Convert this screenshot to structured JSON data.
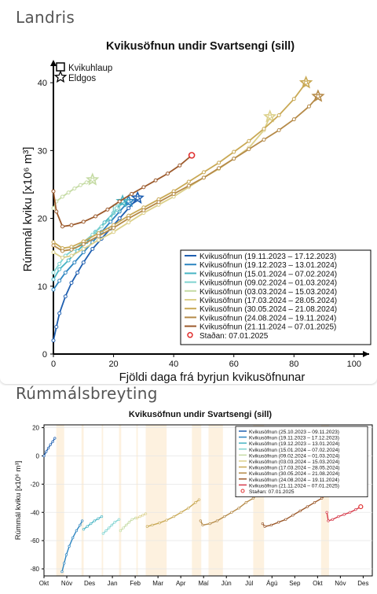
{
  "sections": {
    "top": "Landris",
    "bottom": "Rúmmálsbreyting"
  },
  "legend_symbols": {
    "square": "Kvikuhlaup",
    "star": "Eldgos"
  },
  "colors": {
    "s1": "#1f5fb0",
    "s2": "#2e86c1",
    "s3": "#48b5c4",
    "s4": "#7fd3d0",
    "s5": "#c5dba4",
    "s6": "#dcd08a",
    "s7": "#c9a955",
    "s8": "#b58a48",
    "s9": "#9c5a2c",
    "s10": "#d63a4a",
    "now": "#e03030"
  },
  "chart_data": [
    {
      "type": "line",
      "title": "Kvikusöfnun undir Svartsengi (sill)",
      "xlabel": "Fjöldi daga frá byrjun kvikusöfnunar",
      "ylabel": "Rúmmál kviku [x10⁶ m³]",
      "xlim": [
        0,
        105
      ],
      "ylim": [
        0,
        45
      ],
      "xticks": [
        0,
        20,
        40,
        60,
        80,
        100
      ],
      "yticks": [
        0,
        10,
        20,
        30,
        40
      ],
      "legend_position": "bottom-right",
      "series": [
        {
          "name": "Kvikusöfnun (19.11.2023 – 17.12.2023)",
          "x": [
            0,
            1,
            2,
            4,
            6,
            8,
            10,
            13,
            16,
            19,
            22,
            25,
            28
          ],
          "y": [
            2,
            4,
            6,
            8.5,
            10.5,
            12,
            13.5,
            15.5,
            17,
            18.5,
            20,
            21.5,
            23
          ],
          "end": "star"
        },
        {
          "name": "Kvikusöfnun (19.12.2023 – 13.01.2024)",
          "x": [
            0,
            2,
            4,
            7,
            10,
            13,
            16,
            19,
            22,
            25
          ],
          "y": [
            9.5,
            10.8,
            12,
            13.5,
            15,
            16.5,
            18,
            19.5,
            21,
            22.5
          ],
          "end": "star"
        },
        {
          "name": "Kvikusöfnun (15.01.2024 – 07.02.2024)",
          "x": [
            0,
            2,
            5,
            8,
            11,
            14,
            17,
            20,
            23
          ],
          "y": [
            11,
            12.5,
            13.8,
            15.2,
            16.5,
            18,
            19.4,
            20.8,
            22.5
          ],
          "end": "star"
        },
        {
          "name": "Kvikusöfnun (09.02.2024 – 01.03.2024)",
          "x": [
            0,
            2,
            4,
            7,
            10,
            13,
            16,
            19,
            21
          ],
          "y": [
            12,
            13.3,
            14.5,
            15.5,
            16.5,
            17.6,
            18.8,
            20,
            21.5
          ],
          "end": "square"
        },
        {
          "name": "Kvikusöfnun (03.03.2024 – 15.03.2024)",
          "x": [
            0,
            1,
            3,
            5,
            7,
            9,
            11,
            13
          ],
          "y": [
            21.5,
            22.5,
            23.2,
            23.8,
            24.4,
            24.9,
            25.3,
            25.7
          ],
          "end": "star"
        },
        {
          "name": "Kvikusöfnun (17.03.2024 – 28.05.2024)",
          "x": [
            0,
            3,
            6,
            10,
            15,
            20,
            25,
            30,
            35,
            40,
            45,
            50,
            55,
            60,
            65,
            70,
            72
          ],
          "y": [
            15,
            14.2,
            14.5,
            15.5,
            16.8,
            18,
            19.4,
            20.8,
            22,
            23.2,
            24.6,
            26,
            27.3,
            28.8,
            30.4,
            33,
            35
          ],
          "end": "star"
        },
        {
          "name": "Kvikusöfnun (30.05.2024 – 21.08.2024)",
          "x": [
            0,
            3,
            6,
            10,
            15,
            20,
            25,
            30,
            35,
            40,
            45,
            50,
            55,
            60,
            65,
            70,
            75,
            80,
            84
          ],
          "y": [
            16.5,
            15.6,
            15.8,
            16.6,
            17.8,
            19,
            20.4,
            21.6,
            22.8,
            24,
            25.4,
            26.8,
            28.2,
            29.8,
            31.4,
            33.2,
            35.2,
            37.6,
            40
          ],
          "end": "star"
        },
        {
          "name": "Kvikusöfnun (24.08.2024 – 19.11.2024)",
          "x": [
            0,
            3,
            6,
            10,
            15,
            20,
            25,
            30,
            35,
            40,
            45,
            50,
            55,
            60,
            65,
            70,
            75,
            80,
            85,
            88
          ],
          "y": [
            16,
            15.2,
            15.4,
            16.2,
            17.4,
            18.6,
            20,
            21.2,
            22.4,
            23.6,
            24.8,
            26,
            27.4,
            28.8,
            30.2,
            31.6,
            33,
            34.6,
            36.5,
            38
          ],
          "end": "star"
        },
        {
          "name": "Kvikusöfnun (21.11.2024 – 07.01.2025)",
          "x": [
            0,
            1,
            3,
            6,
            10,
            14,
            18,
            22,
            26,
            30,
            34,
            38,
            42,
            46
          ],
          "y": [
            24,
            21,
            18.8,
            19,
            19.5,
            20.3,
            21.3,
            22.5,
            23.6,
            24.6,
            25.6,
            26.6,
            27.8,
            29.3
          ],
          "end": "none"
        }
      ],
      "current_point": {
        "label": "Staðan: 07.01.2025",
        "x": 46,
        "y": 29.3
      }
    },
    {
      "type": "line",
      "title": "Kvikusöfnun undir Svartsengi (sill)",
      "xlabel": "",
      "ylabel": "Rúmmál kviku [x10⁶ m³]",
      "ylim": [
        -85,
        22
      ],
      "yticks": [
        20,
        0,
        -20,
        -40,
        -60,
        -80
      ],
      "months": [
        "Okt",
        "Nóv",
        "Des",
        "Jan",
        "Feb",
        "Mar",
        "Apr",
        "Maí",
        "Jún",
        "Júl",
        "Ágú",
        "Sep",
        "Okt",
        "Nóv",
        "Des"
      ],
      "legend_position": "top-right",
      "series": [
        {
          "name": "Kvikusöfnun (25.10.2023 – 09.11.2023)",
          "x": [
            0,
            3,
            6,
            9,
            12,
            15
          ],
          "y": [
            0,
            3,
            5.5,
            8,
            10,
            12.5
          ]
        },
        {
          "name": "Kvikusöfnun (19.11.2023 – 17.12.2023)",
          "x": [
            25,
            28,
            31,
            35,
            40,
            45,
            50,
            53
          ],
          "y": [
            -82,
            -76,
            -70,
            -64,
            -58,
            -53,
            -49,
            -46
          ]
        },
        {
          "name": "Kvikusöfnun (19.12.2023 – 13.01.2024)",
          "x": [
            55,
            60,
            65,
            70,
            75,
            80
          ],
          "y": [
            -52,
            -50,
            -48,
            -46,
            -44.5,
            -43
          ]
        },
        {
          "name": "Kvikusöfnun (15.01.2024 – 07.02.2024)",
          "x": [
            82,
            86,
            90,
            94,
            98,
            104
          ],
          "y": [
            -55,
            -53,
            -51,
            -49,
            -47,
            -45
          ]
        },
        {
          "name": "Kvikusöfnun (09.02.2024 – 01.03.2024)",
          "x": [
            106,
            110,
            114,
            118,
            122,
            127
          ],
          "y": [
            -53,
            -51,
            -49,
            -47,
            -45,
            -44
          ]
        },
        {
          "name": "Kvikusöfnun (03.03.2024 – 15.03.2024)",
          "x": [
            129,
            133,
            137,
            141
          ],
          "y": [
            -44,
            -43,
            -42,
            -41
          ]
        },
        {
          "name": "Kvikusöfnun (17.03.2024 – 28.05.2024)",
          "x": [
            143,
            150,
            160,
            170,
            180,
            190,
            200,
            210,
            215
          ],
          "y": [
            -50,
            -49,
            -47.5,
            -45.5,
            -43,
            -40,
            -37,
            -33,
            -31
          ]
        },
        {
          "name": "Kvikusöfnun (30.05.2024 – 21.08.2024)",
          "x": [
            217,
            220,
            230,
            240,
            250,
            260,
            270,
            280,
            290,
            300
          ],
          "y": [
            -46,
            -49,
            -48,
            -46,
            -43,
            -40,
            -37,
            -33,
            -30,
            -26
          ]
        },
        {
          "name": "Kvikusöfnun (24.08.2024 – 19.11.2024)",
          "x": [
            303,
            306,
            315,
            325,
            335,
            345,
            355,
            365,
            375,
            385,
            390
          ],
          "y": [
            -48,
            -50,
            -49,
            -47,
            -45,
            -42,
            -39,
            -36,
            -33,
            -30,
            -28
          ]
        },
        {
          "name": "Kvikusöfnun (21.11.2024 – 07.01.2025)",
          "x": [
            392,
            394,
            400,
            408,
            416,
            424,
            432,
            439
          ],
          "y": [
            -40,
            -46,
            -45,
            -43,
            -41.5,
            -40,
            -38,
            -36
          ]
        }
      ],
      "current_point": {
        "label": "Staðan: 07.01.2025",
        "x": 439,
        "y": -36
      },
      "eruption_bands": [
        [
          17,
          28
        ],
        [
          52,
          55
        ],
        [
          80,
          82
        ],
        [
          104,
          107
        ],
        [
          128,
          130
        ],
        [
          141,
          170
        ],
        [
          205,
          218
        ],
        [
          228,
          248
        ],
        [
          290,
          305
        ],
        [
          384,
          395
        ]
      ]
    }
  ]
}
